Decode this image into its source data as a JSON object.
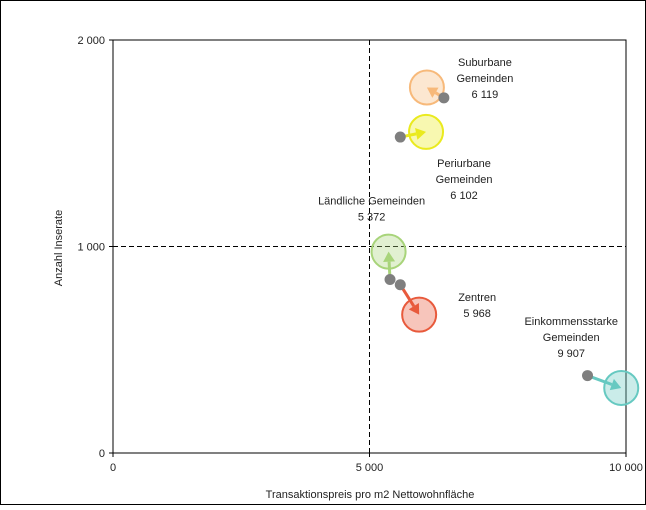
{
  "chart_data": {
    "type": "scatter",
    "title": "",
    "xlabel": "Transaktionspreis pro m2 Nettowohnfläche",
    "ylabel": "Anzahl Inserate",
    "xlim": [
      0,
      10000
    ],
    "ylim": [
      0,
      2000
    ],
    "x_ticks": [
      {
        "value": 0,
        "label": "0"
      },
      {
        "value": 5000,
        "label": "5 000"
      },
      {
        "value": 10000,
        "label": "10 000"
      }
    ],
    "y_ticks": [
      {
        "value": 0,
        "label": "0"
      },
      {
        "value": 1000,
        "label": "1 000"
      },
      {
        "value": 2000,
        "label": "2 000"
      }
    ],
    "reference_lines": {
      "x": 5000,
      "y": 1000
    },
    "grid": false,
    "series": [
      {
        "label_lines": [
          "Suburbane",
          "Gemeinden",
          "6 119"
        ],
        "label_position": "right",
        "color": "#F7B97A",
        "from": {
          "x": 6450,
          "y": 1720
        },
        "to": {
          "x": 6119,
          "y": 1770
        }
      },
      {
        "label_lines": [
          "Periurbane",
          "Gemeinden",
          "6 102"
        ],
        "label_position": "below-right",
        "color": "#EAEA1E",
        "from": {
          "x": 5600,
          "y": 1530
        },
        "to": {
          "x": 6102,
          "y": 1555
        }
      },
      {
        "label_lines": [
          "Ländliche Gemeinden",
          "5 372"
        ],
        "label_position": "above",
        "color": "#A8D47A",
        "from": {
          "x": 5400,
          "y": 840
        },
        "to": {
          "x": 5372,
          "y": 975
        }
      },
      {
        "label_lines": [
          "Zentren",
          "5 968"
        ],
        "label_position": "right",
        "color": "#E85A3C",
        "from": {
          "x": 5600,
          "y": 815
        },
        "to": {
          "x": 5968,
          "y": 670
        }
      },
      {
        "label_lines": [
          "Einkommensstarke",
          "Gemeinden",
          "9 907"
        ],
        "label_position": "above-left",
        "color": "#66C9C1",
        "from": {
          "x": 9250,
          "y": 375
        },
        "to": {
          "x": 9907,
          "y": 315
        }
      }
    ]
  }
}
